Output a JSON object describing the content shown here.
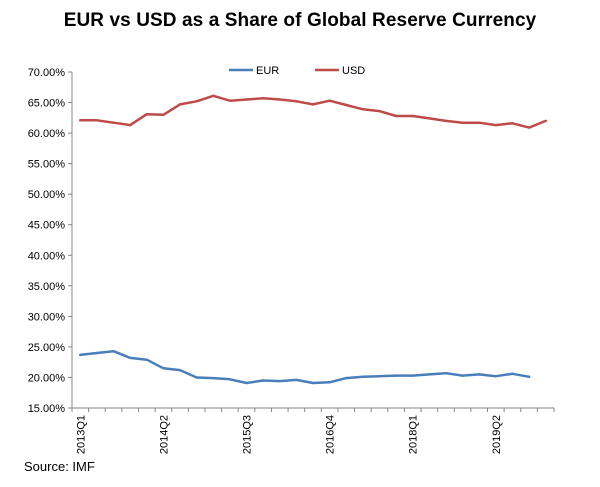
{
  "chart_data": {
    "type": "line",
    "title": "EUR vs USD as a Share of Global Reserve Currency",
    "source": "Source: IMF",
    "xlabel": "",
    "ylabel": "",
    "ylim": [
      0.15,
      0.7
    ],
    "y_ticks": [
      "15.00%",
      "20.00%",
      "25.00%",
      "30.00%",
      "35.00%",
      "40.00%",
      "45.00%",
      "50.00%",
      "55.00%",
      "60.00%",
      "65.00%",
      "70.00%"
    ],
    "x": [
      "2013Q1",
      "2013Q2",
      "2013Q3",
      "2013Q4",
      "2014Q1",
      "2014Q2",
      "2014Q3",
      "2014Q4",
      "2015Q1",
      "2015Q2",
      "2015Q3",
      "2015Q4",
      "2016Q1",
      "2016Q2",
      "2016Q3",
      "2016Q4",
      "2017Q1",
      "2017Q2",
      "2017Q3",
      "2017Q4",
      "2018Q1",
      "2018Q2",
      "2018Q3",
      "2018Q4",
      "2019Q1",
      "2019Q2",
      "2019Q3",
      "2019Q4",
      "2020Q1"
    ],
    "x_tick_labels": [
      "2013Q1",
      "2014Q2",
      "2015Q3",
      "2016Q4",
      "2018Q1",
      "2019Q2"
    ],
    "legend_position": "top-center",
    "grid": false,
    "series": [
      {
        "name": "EUR",
        "color": "#4a7ebb",
        "values": [
          0.237,
          0.24,
          0.243,
          0.232,
          0.229,
          0.215,
          0.212,
          0.2,
          0.199,
          0.197,
          0.191,
          0.195,
          0.194,
          0.196,
          0.191,
          0.192,
          0.199,
          0.201,
          0.202,
          0.203,
          0.203,
          0.205,
          0.207,
          0.203,
          0.205,
          0.202,
          0.206,
          0.201,
          null
        ]
      },
      {
        "name": "USD",
        "color": "#be4b48",
        "values": [
          0.621,
          0.621,
          0.617,
          0.613,
          0.631,
          0.63,
          0.647,
          0.652,
          0.661,
          0.653,
          0.655,
          0.657,
          0.655,
          0.652,
          0.647,
          0.653,
          0.646,
          0.639,
          0.636,
          0.628,
          0.628,
          0.624,
          0.62,
          0.617,
          0.617,
          0.613,
          0.616,
          0.609,
          0.62
        ]
      }
    ]
  }
}
